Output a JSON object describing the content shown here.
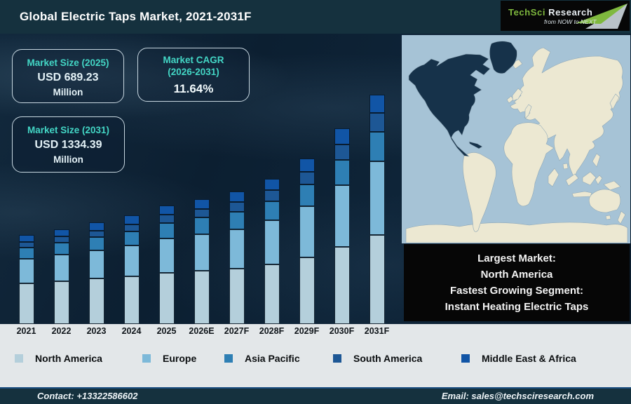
{
  "header": {
    "title": "Global Electric Taps Market, 2021-2031F",
    "logo": {
      "brand_primary": "TechSci",
      "brand_secondary": "Research",
      "tagline": "from NOW to NEXT"
    }
  },
  "stats": {
    "box_2025": {
      "title": "Market Size (2025)",
      "value": "USD 689.23",
      "unit": "Million"
    },
    "box_cagr": {
      "title_line1": "Market CAGR",
      "title_line2": "(2026-2031)",
      "value": "11.64%"
    },
    "box_2031": {
      "title": "Market Size (2031)",
      "value": "USD 1334.39",
      "unit": "Million"
    }
  },
  "map_callout": {
    "line1": "Largest Market:",
    "line2": "North America",
    "line3": "Fastest Growing Segment:",
    "line4": "Instant Heating Electric Taps"
  },
  "footer": {
    "contact": "Contact: +13322586602",
    "email": "Email: sales@techsciresearch.com"
  },
  "colors": {
    "header_bg": "#15313e",
    "accent_teal": "#43d6c5",
    "brand_green": "#7fb93e",
    "map_ocean": "#a6c3d6",
    "map_land": "#ece8d2",
    "map_highlight": "#16324a"
  },
  "chart_data": {
    "type": "bar",
    "stacked": true,
    "title": "Global Electric Taps Market, 2021-2031F",
    "unit": "USD Million",
    "xlabel": "",
    "ylabel": "",
    "ylim": [
      0,
      1400
    ],
    "grid": false,
    "legend_position": "bottom",
    "categories": [
      "2021",
      "2022",
      "2023",
      "2024",
      "2025",
      "2026E",
      "2027F",
      "2028F",
      "2029F",
      "2030F",
      "2031F"
    ],
    "series": [
      {
        "name": "North America",
        "color": "#b4cfdb",
        "values": [
          238,
          251,
          264,
          277,
          298,
          309,
          322,
          347,
          389,
          451,
          520
        ]
      },
      {
        "name": "Europe",
        "color": "#7db9d9",
        "values": [
          140,
          152,
          166,
          180,
          200,
          215,
          231,
          258,
          298,
          358,
          427
        ]
      },
      {
        "name": "Asia Pacific",
        "color": "#2e7fb4",
        "values": [
          67,
          72,
          77,
          82,
          90,
          95,
          100,
          110,
          125,
          148,
          173
        ]
      },
      {
        "name": "South America",
        "color": "#1d5795",
        "values": [
          31,
          34,
          38,
          42,
          47,
          51,
          56,
          63,
          73,
          89,
          107
        ]
      },
      {
        "name": "Middle East & Africa",
        "color": "#1155a6",
        "values": [
          41,
          44,
          47,
          50,
          55,
          58,
          62,
          68,
          77,
          91,
          107
        ]
      }
    ],
    "totals_estimated": [
      517,
      553,
      592,
      631,
      689,
      728,
      771,
      846,
      962,
      1137,
      1334
    ],
    "annotations": [
      "Market Size (2025): USD 689.23 Million",
      "Market CAGR (2026-2031): 11.64%",
      "Market Size (2031): USD 1334.39 Million"
    ]
  }
}
